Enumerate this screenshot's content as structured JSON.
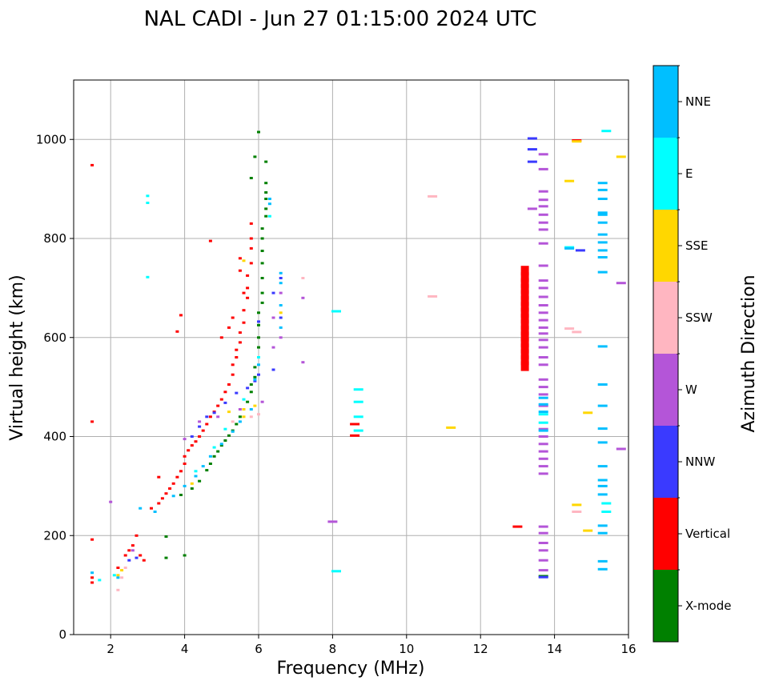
{
  "chart_data": {
    "type": "scatter",
    "title": "NAL CADI - Jun 27 01:15:00 2024 UTC",
    "xlabel": "Frequency (MHz)",
    "ylabel": "Virtual height (km)",
    "xlim": [
      1,
      16
    ],
    "ylim": [
      0,
      1120
    ],
    "xticks": [
      2,
      4,
      6,
      8,
      10,
      12,
      14,
      16
    ],
    "yticks": [
      0,
      200,
      400,
      600,
      800,
      1000
    ],
    "grid": true,
    "colorbar": {
      "label": "Azimuth Direction",
      "categories": [
        {
          "name": "X-mode",
          "color": "#008000"
        },
        {
          "name": "Vertical",
          "color": "#ff0000"
        },
        {
          "name": "NNW",
          "color": "#3a3aff"
        },
        {
          "name": "W",
          "color": "#b455d8"
        },
        {
          "name": "SSW",
          "color": "#ffb6c1"
        },
        {
          "name": "SSE",
          "color": "#ffd700"
        },
        {
          "name": "E",
          "color": "#00ffff"
        },
        {
          "name": "NNE",
          "color": "#00bfff"
        }
      ]
    },
    "series": [
      {
        "name": "Vertical",
        "points": [
          [
            1.5,
            105
          ],
          [
            1.5,
            115
          ],
          [
            1.5,
            430
          ],
          [
            1.5,
            948
          ],
          [
            1.5,
            192
          ],
          [
            2.2,
            135
          ],
          [
            2.4,
            160
          ],
          [
            2.5,
            170
          ],
          [
            2.6,
            180
          ],
          [
            2.7,
            200
          ],
          [
            2.8,
            160
          ],
          [
            2.9,
            150
          ],
          [
            3.1,
            255
          ],
          [
            3.3,
            265
          ],
          [
            3.4,
            275
          ],
          [
            3.5,
            285
          ],
          [
            3.6,
            295
          ],
          [
            3.7,
            305
          ],
          [
            3.8,
            318
          ],
          [
            3.9,
            330
          ],
          [
            4.0,
            345
          ],
          [
            4.0,
            360
          ],
          [
            4.1,
            372
          ],
          [
            4.2,
            382
          ],
          [
            4.3,
            390
          ],
          [
            4.4,
            400
          ],
          [
            4.5,
            412
          ],
          [
            4.6,
            425
          ],
          [
            4.7,
            440
          ],
          [
            4.8,
            450
          ],
          [
            4.9,
            462
          ],
          [
            5.0,
            475
          ],
          [
            5.1,
            490
          ],
          [
            5.2,
            505
          ],
          [
            5.3,
            525
          ],
          [
            5.3,
            545
          ],
          [
            5.4,
            560
          ],
          [
            5.4,
            575
          ],
          [
            5.5,
            590
          ],
          [
            5.5,
            610
          ],
          [
            5.6,
            630
          ],
          [
            5.6,
            655
          ],
          [
            5.7,
            680
          ],
          [
            5.7,
            700
          ],
          [
            5.7,
            725
          ],
          [
            5.8,
            750
          ],
          [
            5.8,
            780
          ],
          [
            5.8,
            800
          ],
          [
            5.8,
            830
          ],
          [
            5.5,
            735
          ],
          [
            5.5,
            760
          ],
          [
            5.6,
            690
          ],
          [
            5.3,
            640
          ],
          [
            5.2,
            620
          ],
          [
            5.0,
            600
          ],
          [
            4.7,
            795
          ],
          [
            3.9,
            645
          ],
          [
            3.8,
            612
          ],
          [
            3.3,
            318
          ],
          [
            8.6,
            402
          ],
          [
            8.6,
            425
          ],
          [
            13.0,
            218
          ],
          [
            14.6,
            998
          ]
        ]
      },
      {
        "name": "X-mode",
        "points": [
          [
            3.5,
            155
          ],
          [
            3.5,
            198
          ],
          [
            3.9,
            282
          ],
          [
            4.0,
            160
          ],
          [
            4.2,
            295
          ],
          [
            4.4,
            310
          ],
          [
            4.6,
            332
          ],
          [
            4.7,
            345
          ],
          [
            4.8,
            360
          ],
          [
            4.9,
            370
          ],
          [
            5.0,
            382
          ],
          [
            5.1,
            392
          ],
          [
            5.2,
            402
          ],
          [
            5.3,
            412
          ],
          [
            5.4,
            425
          ],
          [
            5.5,
            440
          ],
          [
            5.6,
            455
          ],
          [
            5.7,
            470
          ],
          [
            5.8,
            490
          ],
          [
            5.8,
            505
          ],
          [
            5.9,
            520
          ],
          [
            5.9,
            540
          ],
          [
            6.0,
            560
          ],
          [
            6.0,
            580
          ],
          [
            6.0,
            600
          ],
          [
            6.0,
            625
          ],
          [
            6.0,
            650
          ],
          [
            6.1,
            670
          ],
          [
            6.1,
            690
          ],
          [
            6.1,
            720
          ],
          [
            6.1,
            750
          ],
          [
            6.1,
            775
          ],
          [
            6.1,
            800
          ],
          [
            6.1,
            820
          ],
          [
            6.2,
            845
          ],
          [
            6.2,
            860
          ],
          [
            6.2,
            880
          ],
          [
            6.2,
            912
          ],
          [
            6.2,
            893
          ],
          [
            6.0,
            1015
          ],
          [
            5.9,
            965
          ],
          [
            5.8,
            922
          ],
          [
            6.2,
            955
          ],
          [
            13.7,
            118
          ]
        ]
      },
      {
        "name": "NNW",
        "points": [
          [
            2.5,
            150
          ],
          [
            2.7,
            155
          ],
          [
            4.2,
            400
          ],
          [
            4.4,
            420
          ],
          [
            4.6,
            440
          ],
          [
            4.8,
            448
          ],
          [
            5.1,
            468
          ],
          [
            5.4,
            488
          ],
          [
            5.7,
            498
          ],
          [
            5.9,
            512
          ],
          [
            6.0,
            525
          ],
          [
            6.4,
            535
          ],
          [
            6.4,
            690
          ],
          [
            6.6,
            640
          ],
          [
            6.6,
            720
          ],
          [
            13.4,
            1002
          ],
          [
            13.4,
            980
          ],
          [
            13.4,
            955
          ],
          [
            14.7,
            776
          ],
          [
            13.7,
            116
          ],
          [
            6.0,
            632
          ]
        ]
      },
      {
        "name": "W",
        "points": [
          [
            2.0,
            268
          ],
          [
            2.6,
            170
          ],
          [
            4.0,
            395
          ],
          [
            4.4,
            430
          ],
          [
            4.9,
            440
          ],
          [
            5.5,
            455
          ],
          [
            6.1,
            470
          ],
          [
            6.4,
            580
          ],
          [
            6.4,
            640
          ],
          [
            6.6,
            690
          ],
          [
            6.6,
            600
          ],
          [
            8.0,
            228
          ],
          [
            13.4,
            860
          ],
          [
            13.7,
            970
          ],
          [
            13.7,
            940
          ],
          [
            13.7,
            895
          ],
          [
            13.7,
            878
          ],
          [
            13.7,
            865
          ],
          [
            13.7,
            848
          ],
          [
            13.7,
            832
          ],
          [
            13.7,
            818
          ],
          [
            13.7,
            790
          ],
          [
            13.7,
            745
          ],
          [
            13.7,
            715
          ],
          [
            13.7,
            700
          ],
          [
            13.7,
            682
          ],
          [
            13.7,
            665
          ],
          [
            13.7,
            650
          ],
          [
            13.7,
            635
          ],
          [
            13.7,
            620
          ],
          [
            13.7,
            608
          ],
          [
            13.7,
            595
          ],
          [
            13.7,
            580
          ],
          [
            13.7,
            560
          ],
          [
            13.7,
            545
          ],
          [
            13.7,
            515
          ],
          [
            13.7,
            500
          ],
          [
            13.7,
            485
          ],
          [
            13.7,
            462
          ],
          [
            13.7,
            415
          ],
          [
            13.7,
            400
          ],
          [
            13.7,
            385
          ],
          [
            13.7,
            370
          ],
          [
            13.7,
            355
          ],
          [
            13.7,
            340
          ],
          [
            13.7,
            325
          ],
          [
            13.7,
            218
          ],
          [
            13.7,
            205
          ],
          [
            13.7,
            185
          ],
          [
            13.7,
            170
          ],
          [
            13.7,
            150
          ],
          [
            13.7,
            130
          ],
          [
            15.8,
            710
          ],
          [
            15.8,
            375
          ],
          [
            7.2,
            550
          ],
          [
            7.2,
            680
          ]
        ]
      },
      {
        "name": "SSW",
        "points": [
          [
            2.2,
            90
          ],
          [
            2.3,
            115
          ],
          [
            2.4,
            135
          ],
          [
            5.3,
            430
          ],
          [
            5.8,
            440
          ],
          [
            6.0,
            445
          ],
          [
            10.7,
            885
          ],
          [
            10.7,
            683
          ],
          [
            14.4,
            618
          ],
          [
            14.6,
            611
          ],
          [
            14.6,
            248
          ],
          [
            7.2,
            720
          ]
        ]
      },
      {
        "name": "SSE",
        "points": [
          [
            2.2,
            120
          ],
          [
            2.3,
            130
          ],
          [
            4.2,
            305
          ],
          [
            5.2,
            450
          ],
          [
            5.6,
            455
          ],
          [
            5.9,
            462
          ],
          [
            5.6,
            755
          ],
          [
            5.6,
            440
          ],
          [
            6.6,
            650
          ],
          [
            11.2,
            418
          ],
          [
            14.4,
            916
          ],
          [
            14.6,
            996
          ],
          [
            14.6,
            262
          ],
          [
            14.9,
            448
          ],
          [
            14.9,
            210
          ],
          [
            15.8,
            965
          ]
        ]
      },
      {
        "name": "E",
        "points": [
          [
            1.7,
            110
          ],
          [
            2.1,
            120
          ],
          [
            3.0,
            872
          ],
          [
            3.0,
            886
          ],
          [
            3.0,
            722
          ],
          [
            4.3,
            330
          ],
          [
            4.8,
            378
          ],
          [
            5.1,
            415
          ],
          [
            5.6,
            475
          ],
          [
            6.0,
            560
          ],
          [
            6.3,
            845
          ],
          [
            8.1,
            653
          ],
          [
            8.1,
            128
          ],
          [
            8.7,
            495
          ],
          [
            8.7,
            470
          ],
          [
            8.7,
            440
          ],
          [
            8.7,
            412
          ],
          [
            13.7,
            445
          ],
          [
            13.7,
            428
          ],
          [
            14.4,
            782
          ],
          [
            15.4,
            265
          ],
          [
            15.4,
            1017
          ],
          [
            15.4,
            248
          ]
        ]
      },
      {
        "name": "NNE",
        "points": [
          [
            1.5,
            125
          ],
          [
            2.2,
            115
          ],
          [
            2.8,
            255
          ],
          [
            3.2,
            248
          ],
          [
            3.7,
            280
          ],
          [
            4.0,
            300
          ],
          [
            4.3,
            320
          ],
          [
            4.5,
            340
          ],
          [
            4.7,
            360
          ],
          [
            5.0,
            385
          ],
          [
            5.3,
            410
          ],
          [
            5.5,
            430
          ],
          [
            5.8,
            455
          ],
          [
            5.9,
            515
          ],
          [
            6.0,
            545
          ],
          [
            6.3,
            870
          ],
          [
            6.3,
            880
          ],
          [
            6.6,
            730
          ],
          [
            6.6,
            710
          ],
          [
            6.6,
            665
          ],
          [
            6.6,
            620
          ],
          [
            13.7,
            478
          ],
          [
            13.7,
            465
          ],
          [
            13.7,
            450
          ],
          [
            13.7,
            412
          ],
          [
            14.4,
            780
          ],
          [
            15.3,
            912
          ],
          [
            15.3,
            898
          ],
          [
            15.3,
            880
          ],
          [
            15.3,
            852
          ],
          [
            15.3,
            848
          ],
          [
            15.3,
            832
          ],
          [
            15.3,
            808
          ],
          [
            15.3,
            792
          ],
          [
            15.3,
            776
          ],
          [
            15.3,
            762
          ],
          [
            15.3,
            732
          ],
          [
            15.3,
            582
          ],
          [
            15.3,
            505
          ],
          [
            15.3,
            462
          ],
          [
            15.3,
            416
          ],
          [
            15.3,
            388
          ],
          [
            15.3,
            340
          ],
          [
            15.3,
            312
          ],
          [
            15.3,
            300
          ],
          [
            15.3,
            283
          ],
          [
            15.3,
            220
          ],
          [
            15.3,
            205
          ],
          [
            15.3,
            148
          ],
          [
            15.3,
            132
          ]
        ]
      },
      {
        "name": "Vertical-block",
        "points": [
          [
            13.2,
            735
          ],
          [
            13.2,
            722
          ],
          [
            13.2,
            710
          ],
          [
            13.2,
            698
          ],
          [
            13.2,
            686
          ],
          [
            13.2,
            674
          ],
          [
            13.2,
            662
          ],
          [
            13.2,
            650
          ],
          [
            13.2,
            638
          ],
          [
            13.2,
            626
          ],
          [
            13.2,
            614
          ],
          [
            13.2,
            602
          ],
          [
            13.2,
            590
          ],
          [
            13.2,
            578
          ],
          [
            13.2,
            566
          ],
          [
            13.2,
            554
          ],
          [
            13.2,
            542
          ]
        ]
      }
    ]
  }
}
